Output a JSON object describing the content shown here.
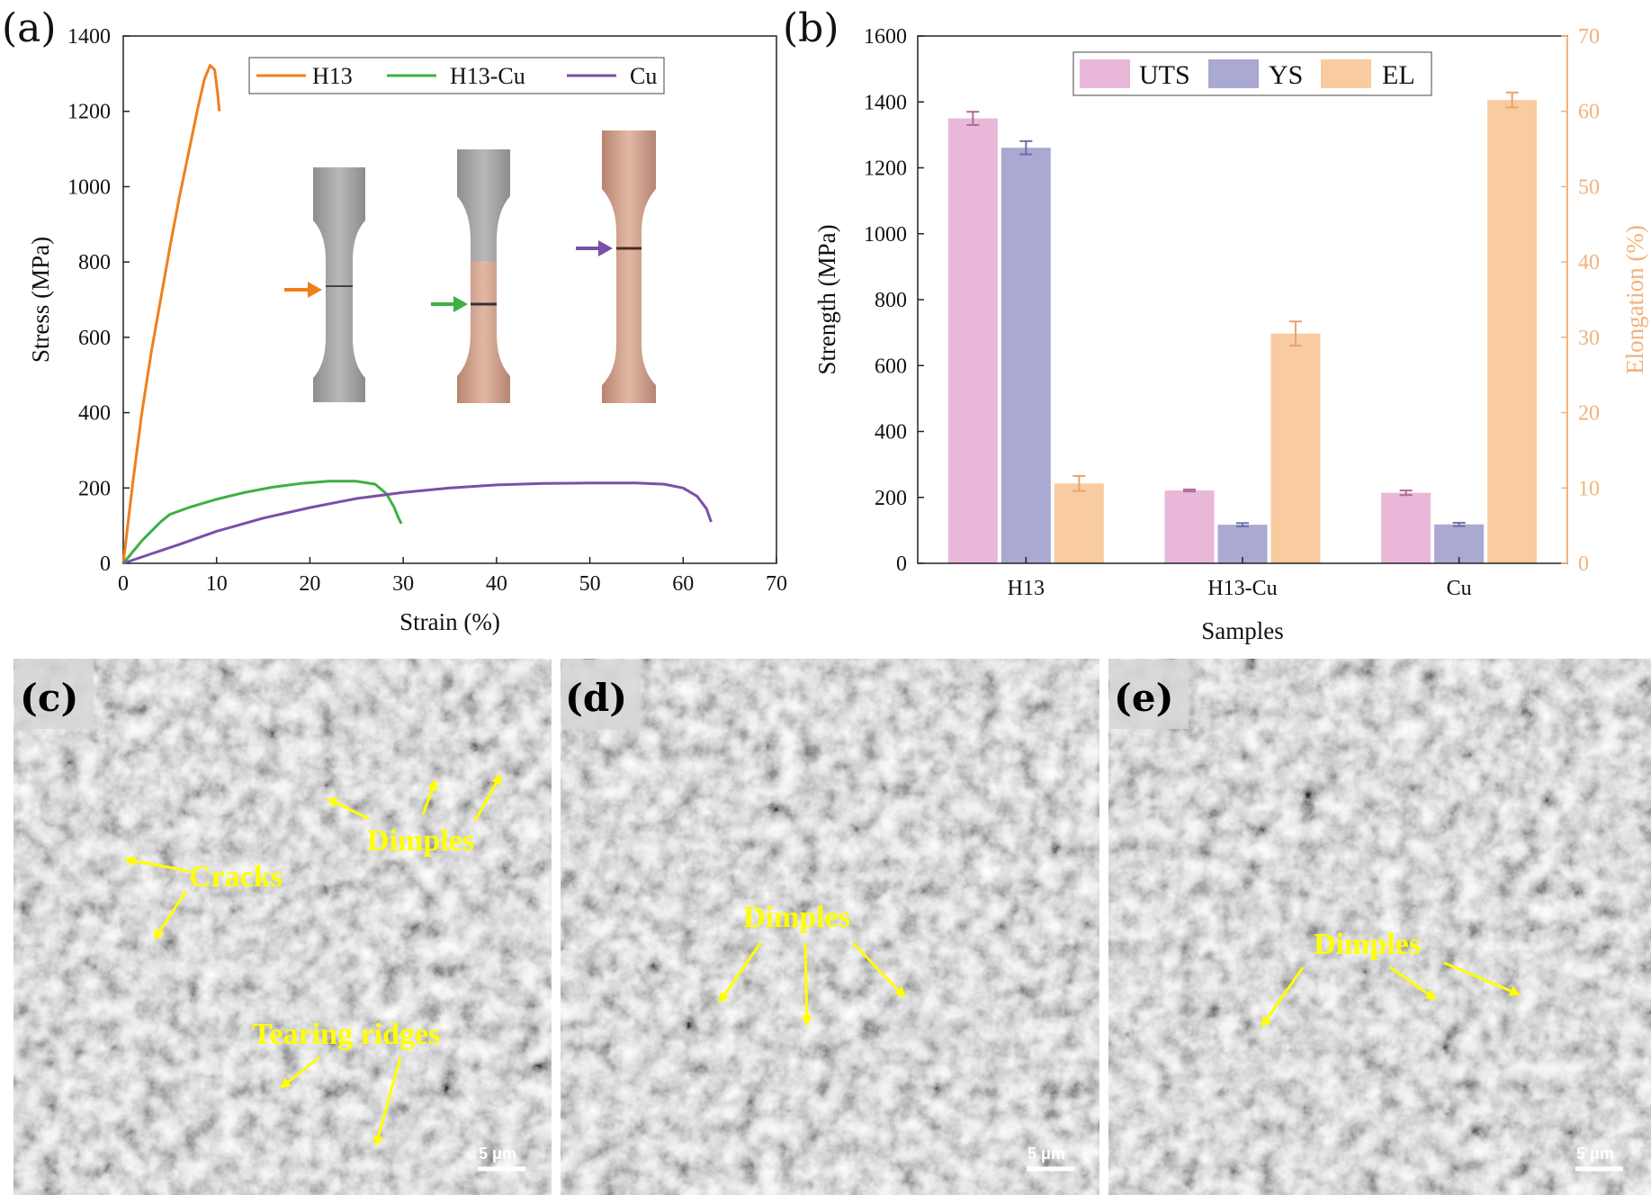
{
  "panel_a": {
    "letter": "(a)",
    "chart_data": {
      "type": "line",
      "xlabel": "Strain (%)",
      "ylabel": "Stress (MPa)",
      "xlim": [
        0,
        70
      ],
      "ylim": [
        0,
        1400
      ],
      "xticks": [
        0,
        10,
        20,
        30,
        40,
        50,
        60,
        70
      ],
      "yticks": [
        0,
        200,
        400,
        600,
        800,
        1000,
        1200,
        1400
      ],
      "legend_position": "top-right",
      "series": [
        {
          "name": "H13",
          "color": "#f07f1b",
          "x": [
            0,
            1,
            2,
            3,
            4,
            5,
            6,
            7,
            8,
            8.7,
            9.3,
            9.8,
            10.1,
            10.3
          ],
          "y": [
            0,
            210,
            400,
            560,
            700,
            840,
            970,
            1090,
            1210,
            1285,
            1322,
            1310,
            1250,
            1200
          ]
        },
        {
          "name": "H13-Cu",
          "color": "#3cb043",
          "x": [
            0,
            1,
            2,
            3,
            4,
            5,
            7,
            10,
            13,
            16,
            19,
            22,
            25,
            27,
            28.2,
            29.0,
            29.5,
            29.8
          ],
          "y": [
            0,
            30,
            60,
            85,
            110,
            130,
            148,
            170,
            188,
            202,
            212,
            218,
            218,
            210,
            185,
            150,
            120,
            105
          ]
        },
        {
          "name": "Cu",
          "color": "#7b4fa8",
          "x": [
            0,
            3,
            6,
            10,
            15,
            20,
            25,
            30,
            35,
            40,
            45,
            50,
            55,
            58,
            60,
            61.5,
            62.5,
            63
          ],
          "y": [
            0,
            25,
            50,
            85,
            120,
            148,
            172,
            188,
            200,
            208,
            212,
            213,
            213,
            210,
            200,
            178,
            145,
            110
          ]
        }
      ]
    }
  },
  "panel_b": {
    "letter": "(b)",
    "chart_data": {
      "type": "bar",
      "xlabel": "Samples",
      "ylabel": "Strength (MPa)",
      "y2label": "Elongation (%)",
      "categories": [
        "H13",
        "H13-Cu",
        "Cu"
      ],
      "ylim": [
        0,
        1600
      ],
      "y2lim": [
        0,
        70
      ],
      "yticks": [
        0,
        200,
        400,
        600,
        800,
        1000,
        1200,
        1400,
        1600
      ],
      "y2ticks": [
        0,
        10,
        20,
        30,
        40,
        50,
        60,
        70
      ],
      "legend_position": "top-center",
      "series": [
        {
          "name": "UTS",
          "axis": "left",
          "color": "#e9b8d9",
          "values": [
            1350,
            221,
            214
          ],
          "errors": [
            20,
            3,
            7
          ]
        },
        {
          "name": "YS",
          "axis": "left",
          "color": "#a9a9d2",
          "values": [
            1261,
            117,
            118
          ],
          "errors": [
            20,
            5,
            5
          ]
        },
        {
          "name": "EL",
          "axis": "right",
          "color": "#f8cba1",
          "values": [
            10.6,
            30.5,
            61.5
          ],
          "errors": [
            1.0,
            1.6,
            1.0
          ]
        }
      ],
      "axis2_color": "#f2b27a"
    }
  },
  "sem_panels": [
    {
      "letter": "(c)",
      "scale": "5 μm",
      "labels": [
        "Dimples",
        "Cracks",
        "Tearing ridges"
      ]
    },
    {
      "letter": "(d)",
      "scale": "5 μm",
      "labels": [
        "Dimples"
      ]
    },
    {
      "letter": "(e)",
      "scale": "5 μm",
      "labels": [
        "Dimples"
      ]
    }
  ]
}
